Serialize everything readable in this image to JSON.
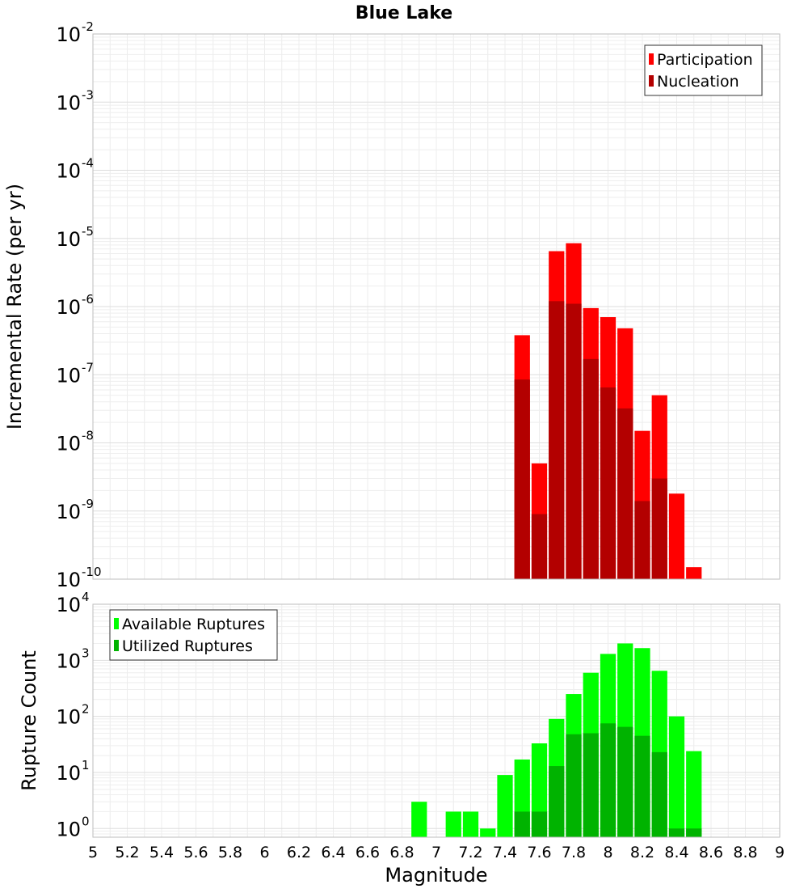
{
  "chart_data": [
    {
      "type": "bar",
      "title": "Blue Lake",
      "ylabel": "Incremental Rate (per yr)",
      "yscale": "log",
      "ylim": [
        1e-10,
        0.01
      ],
      "y_ticks": [
        {
          "base": "10",
          "exp": "-10"
        },
        {
          "base": "10",
          "exp": "-9"
        },
        {
          "base": "10",
          "exp": "-8"
        },
        {
          "base": "10",
          "exp": "-7"
        },
        {
          "base": "10",
          "exp": "-6"
        },
        {
          "base": "10",
          "exp": "-5"
        },
        {
          "base": "10",
          "exp": "-4"
        },
        {
          "base": "10",
          "exp": "-3"
        },
        {
          "base": "10",
          "exp": "-2"
        }
      ],
      "grid": true,
      "legend_position": "top-right",
      "x": [
        7.5,
        7.6,
        7.7,
        7.8,
        7.9,
        8.0,
        8.1,
        8.2,
        8.3,
        8.4,
        8.5
      ],
      "series": [
        {
          "name": "Participation",
          "color": "#ff0000",
          "values": [
            3.8e-07,
            5e-09,
            6.5e-06,
            8.5e-06,
            9.5e-07,
            7e-07,
            4.8e-07,
            1.5e-08,
            5e-08,
            1.8e-09,
            1.5e-10
          ]
        },
        {
          "name": "Nucleation",
          "color": "#b30000",
          "values": [
            8.5e-08,
            9e-10,
            1.2e-06,
            1.1e-06,
            1.7e-07,
            6.5e-08,
            3.2e-08,
            1.4e-09,
            3e-09,
            null,
            null
          ]
        }
      ]
    },
    {
      "type": "bar",
      "ylabel": "Rupture Count",
      "xlabel": "Magnitude",
      "yscale": "log",
      "ylim": [
        0.7,
        10000
      ],
      "y_ticks": [
        {
          "base": "10",
          "exp": "0"
        },
        {
          "base": "10",
          "exp": "1"
        },
        {
          "base": "10",
          "exp": "2"
        },
        {
          "base": "10",
          "exp": "3"
        },
        {
          "base": "10",
          "exp": "4"
        }
      ],
      "xlim": [
        5,
        9
      ],
      "x_ticks": [
        "5",
        "5.2",
        "5.4",
        "5.6",
        "5.8",
        "6",
        "6.2",
        "6.4",
        "6.6",
        "6.8",
        "7",
        "7.2",
        "7.4",
        "7.6",
        "7.8",
        "8",
        "8.2",
        "8.4",
        "8.6",
        "8.8",
        "9"
      ],
      "grid": true,
      "legend_position": "top-left",
      "x": [
        6.9,
        7.1,
        7.2,
        7.3,
        7.4,
        7.5,
        7.6,
        7.7,
        7.8,
        7.9,
        8.0,
        8.1,
        8.2,
        8.3,
        8.4,
        8.5
      ],
      "series": [
        {
          "name": "Available Ruptures",
          "color": "#00ff00",
          "values": [
            3,
            2,
            2,
            1,
            9,
            17,
            33,
            90,
            250,
            600,
            1300,
            2000,
            1650,
            650,
            100,
            24
          ]
        },
        {
          "name": "Utilized Ruptures",
          "color": "#00b300",
          "values": [
            null,
            null,
            null,
            null,
            null,
            2,
            2,
            13,
            48,
            50,
            75,
            65,
            45,
            23,
            1,
            1
          ]
        }
      ]
    }
  ]
}
